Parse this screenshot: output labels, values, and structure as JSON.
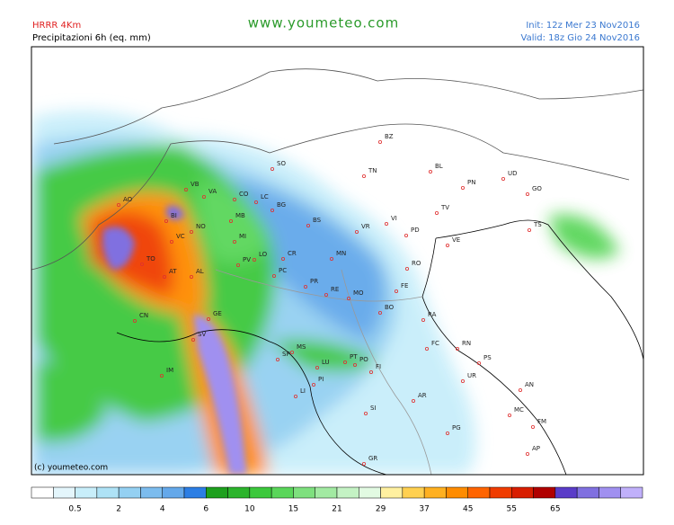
{
  "header": {
    "model": "HRRR 4Km",
    "field": "Precipitazioni 6h (eq. mm)",
    "site": "www.youmeteo.com",
    "init": "Init: 12z Mer  23 Nov2016",
    "valid": "Valid: 18z Gio  24 Nov2016"
  },
  "copyright": "(c) youmeteo.com",
  "places": [
    "BZ",
    "SO",
    "TN",
    "BL",
    "UD",
    "PN",
    "GO",
    "AO",
    "VB",
    "VA",
    "CO",
    "LC",
    "BG",
    "BI",
    "NO",
    "MB",
    "BS",
    "VR",
    "VI",
    "TV",
    "PD",
    "VE",
    "TS",
    "VC",
    "MI",
    "LO",
    "CR",
    "MN",
    "RO",
    "TO",
    "AT",
    "AL",
    "PV",
    "PC",
    "PR",
    "RE",
    "FE",
    "MO",
    "BO",
    "RA",
    "CN",
    "GE",
    "SV",
    "FC",
    "RN",
    "SP",
    "MS",
    "PT",
    "PO",
    "LU",
    "FI",
    "PS",
    "IM",
    "PI",
    "UR",
    "AR",
    "AN",
    "LI",
    "SI",
    "MC",
    "FM",
    "PG",
    "GR",
    "AP"
  ],
  "colorbar": {
    "colors": [
      "#ffffff",
      "#e4f6fc",
      "#c8eefa",
      "#aee2f6",
      "#94d0f2",
      "#7cbcee",
      "#64a8ea",
      "#2c7ee4",
      "#1ea01e",
      "#2cb42c",
      "#3cc83c",
      "#5ad65a",
      "#7ee07e",
      "#a2eaa2",
      "#c4f2c4",
      "#e2fae2",
      "#fff0a0",
      "#ffd050",
      "#ffb020",
      "#ff8c00",
      "#ff6400",
      "#f03c00",
      "#d81e00",
      "#b00000",
      "#5a3cc8",
      "#8070e0",
      "#a090f0",
      "#c0b0fa"
    ],
    "ticks": [
      0.5,
      2,
      4,
      6,
      10,
      15,
      21,
      29,
      37,
      45,
      55,
      65
    ]
  }
}
